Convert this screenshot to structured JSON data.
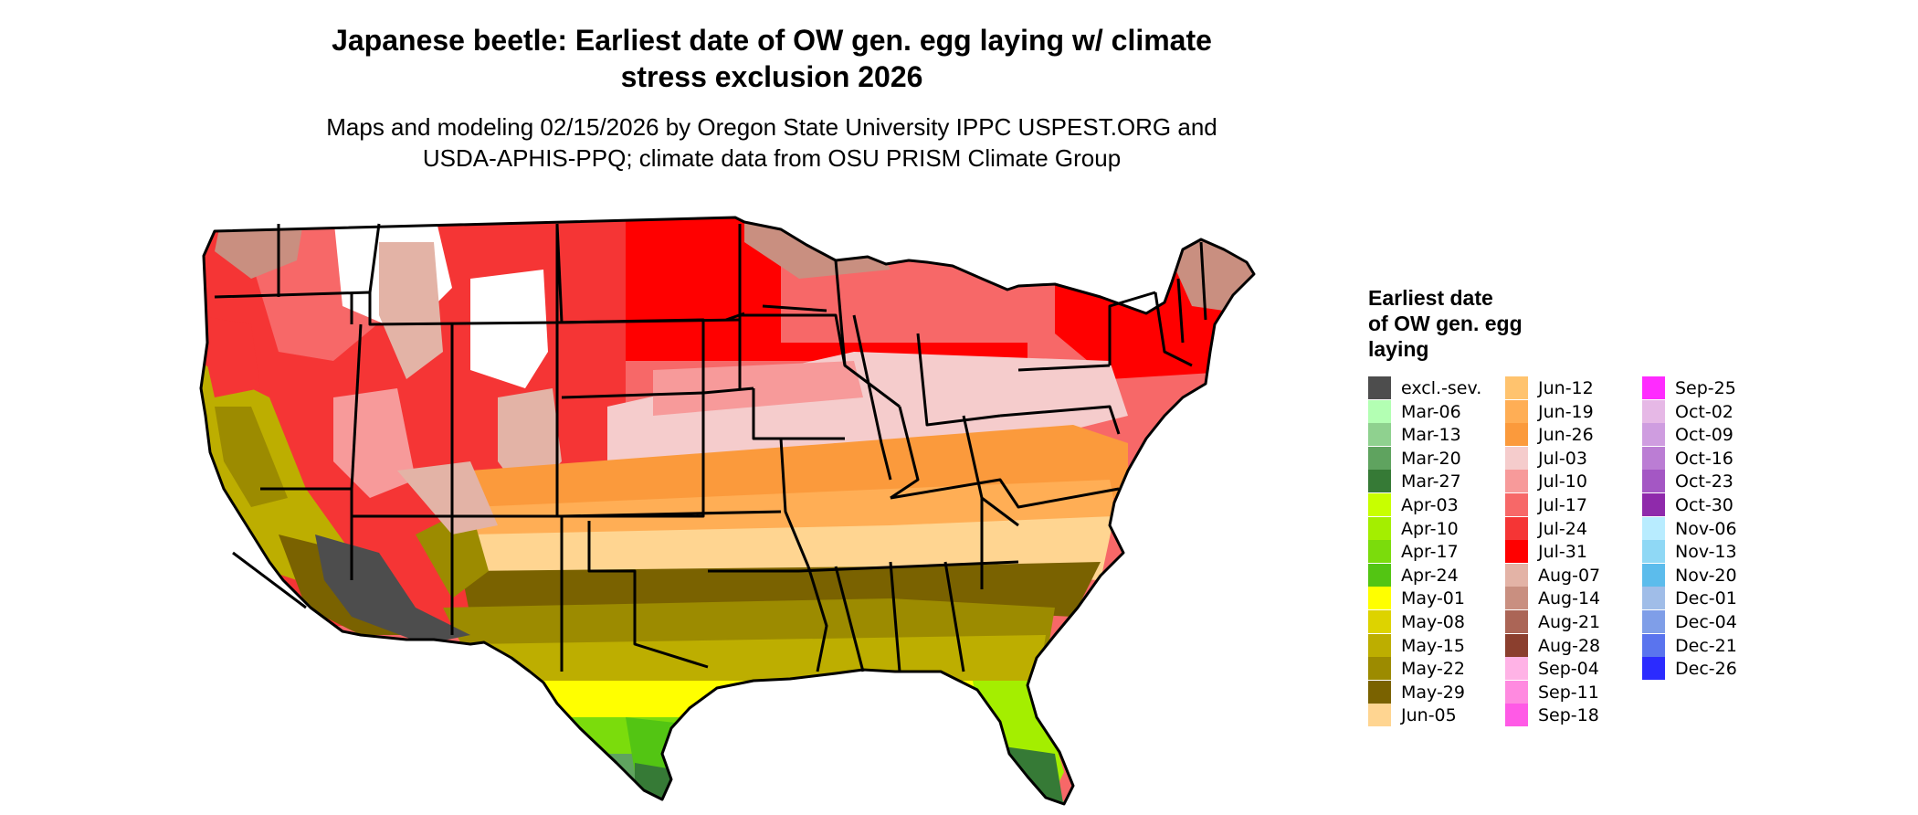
{
  "title_line1": "Japanese beetle: Earliest date of OW gen. egg laying w/ climate",
  "title_line2": "stress exclusion 2026",
  "subtitle_line1": "Maps and modeling 02/15/2026 by Oregon State University IPPC USPEST.ORG and",
  "subtitle_line2": "USDA-APHIS-PPQ; climate data from OSU PRISM Climate Group",
  "legend": {
    "title_line1": "Earliest date",
    "title_line2": "of OW gen. egg",
    "title_line3": "laying",
    "items": [
      {
        "label": "excl.-sev.",
        "color": "#4d4d4d"
      },
      {
        "label": "Mar-06",
        "color": "#b3ffb3"
      },
      {
        "label": "Mar-13",
        "color": "#8fd18f"
      },
      {
        "label": "Mar-20",
        "color": "#5fa35f"
      },
      {
        "label": "Mar-27",
        "color": "#367a36"
      },
      {
        "label": "Apr-03",
        "color": "#c8ff00"
      },
      {
        "label": "Apr-10",
        "color": "#a4ee00"
      },
      {
        "label": "Apr-17",
        "color": "#7bdc0c"
      },
      {
        "label": "Apr-24",
        "color": "#53c513"
      },
      {
        "label": "May-01",
        "color": "#ffff00"
      },
      {
        "label": "May-08",
        "color": "#ddd300"
      },
      {
        "label": "May-15",
        "color": "#bdae00"
      },
      {
        "label": "May-22",
        "color": "#9c8b00"
      },
      {
        "label": "May-29",
        "color": "#7a6200"
      },
      {
        "label": "Jun-05",
        "color": "#ffd591"
      },
      {
        "label": "Jun-12",
        "color": "#ffc36e"
      },
      {
        "label": "Jun-19",
        "color": "#ffae55"
      },
      {
        "label": "Jun-26",
        "color": "#fb9a3c"
      },
      {
        "label": "Jul-03",
        "color": "#f5cccc"
      },
      {
        "label": "Jul-10",
        "color": "#f79a9a"
      },
      {
        "label": "Jul-17",
        "color": "#f76868"
      },
      {
        "label": "Jul-24",
        "color": "#f53535"
      },
      {
        "label": "Jul-31",
        "color": "#ff0000"
      },
      {
        "label": "Aug-07",
        "color": "#e3b3a6"
      },
      {
        "label": "Aug-14",
        "color": "#c98f80"
      },
      {
        "label": "Aug-21",
        "color": "#ab6556"
      },
      {
        "label": "Aug-28",
        "color": "#8b3f2e"
      },
      {
        "label": "Sep-04",
        "color": "#ffb3e6"
      },
      {
        "label": "Sep-11",
        "color": "#ff8ae0"
      },
      {
        "label": "Sep-18",
        "color": "#ff5ae6"
      },
      {
        "label": "Sep-25",
        "color": "#ff2bff"
      },
      {
        "label": "Oct-02",
        "color": "#e6b8e6"
      },
      {
        "label": "Oct-09",
        "color": "#cf9de0"
      },
      {
        "label": "Oct-16",
        "color": "#bb7dd4"
      },
      {
        "label": "Oct-23",
        "color": "#a457c4"
      },
      {
        "label": "Oct-30",
        "color": "#8f2aab"
      },
      {
        "label": "Nov-06",
        "color": "#b8ecff"
      },
      {
        "label": "Nov-13",
        "color": "#8fd8f5"
      },
      {
        "label": "Nov-20",
        "color": "#5cbcec"
      },
      {
        "label": "Dec-01",
        "color": "#a0bde8"
      },
      {
        "label": "Dec-04",
        "color": "#7f9ee8"
      },
      {
        "label": "Dec-21",
        "color": "#5a74ee"
      },
      {
        "label": "Dec-26",
        "color": "#2b2bff"
      }
    ]
  },
  "colors": {
    "excluded": "#4d4d4d",
    "no_data": "#ffffff",
    "boundary": "#000000"
  }
}
